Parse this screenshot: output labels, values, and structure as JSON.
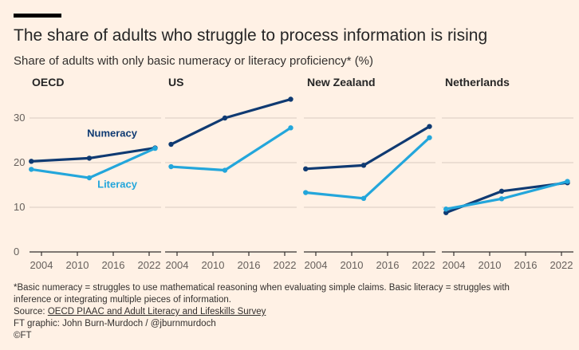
{
  "header": {
    "title": "The share of adults who struggle to process information is rising",
    "subtitle": "Share of adults with only basic numeracy or literacy proficiency* (%)"
  },
  "chart_data": [
    {
      "type": "line",
      "title": "OECD",
      "x": [
        2012,
        2023
      ],
      "xticks": [
        "2004",
        "2010",
        "2016",
        "2022"
      ],
      "xlim": [
        2002,
        2024
      ],
      "ylim": [
        0,
        35
      ],
      "yticks": [
        "0",
        "10",
        "20",
        "30"
      ],
      "series": [
        {
          "name": "Numeracy",
          "points": [
            [
              2002.3,
              20.3
            ],
            [
              2012,
              21
            ],
            [
              2023,
              23.3
            ]
          ]
        },
        {
          "name": "Literacy",
          "points": [
            [
              2002.3,
              18.5
            ],
            [
              2012,
              16.6
            ],
            [
              2023,
              23.2
            ]
          ]
        }
      ]
    },
    {
      "type": "line",
      "title": "US",
      "xticks": [
        "2004",
        "2010",
        "2016",
        "2022"
      ],
      "xlim": [
        2002,
        2024
      ],
      "ylim": [
        0,
        35
      ],
      "series": [
        {
          "name": "Numeracy",
          "points": [
            [
              2003,
              24.1
            ],
            [
              2012,
              30
            ],
            [
              2023,
              34.2
            ]
          ]
        },
        {
          "name": "Literacy",
          "points": [
            [
              2003,
              19.1
            ],
            [
              2012,
              18.3
            ],
            [
              2023,
              27.8
            ]
          ]
        }
      ]
    },
    {
      "type": "line",
      "title": "New Zealand",
      "xticks": [
        "2004",
        "2010",
        "2016",
        "2022"
      ],
      "xlim": [
        2002,
        2024
      ],
      "ylim": [
        0,
        35
      ],
      "series": [
        {
          "name": "Numeracy",
          "points": [
            [
              2002.3,
              18.6
            ],
            [
              2012,
              19.4
            ],
            [
              2023,
              28.1
            ]
          ]
        },
        {
          "name": "Literacy",
          "points": [
            [
              2002.3,
              13.3
            ],
            [
              2012,
              12
            ],
            [
              2023,
              25.6
            ]
          ]
        }
      ]
    },
    {
      "type": "line",
      "title": "Netherlands",
      "xticks": [
        "2004",
        "2010",
        "2016",
        "2022"
      ],
      "xlim": [
        2002,
        2024
      ],
      "ylim": [
        0,
        35
      ],
      "series": [
        {
          "name": "Numeracy",
          "points": [
            [
              2002.7,
              8.8
            ],
            [
              2012,
              13.6
            ],
            [
              2023,
              15.5
            ]
          ]
        },
        {
          "name": "Literacy",
          "points": [
            [
              2002.7,
              9.6
            ],
            [
              2012,
              11.9
            ],
            [
              2023,
              15.8
            ]
          ]
        }
      ]
    }
  ],
  "series_colors": {
    "Numeracy": "#0F3A72",
    "Literacy": "#23A6DB"
  },
  "legend_labels": {
    "Numeracy": "Numeracy",
    "Literacy": "Literacy"
  },
  "footer": {
    "note": "*Basic numeracy = struggles to use mathematical reasoning when evaluating simple claims. Basic literacy = struggles with",
    "note2": "inference or integrating multiple pieces of information.",
    "source_prefix": "Source: ",
    "source_link": "OECD PIAAC and Adult Literacy and Lifeskills Survey",
    "credit": "FT graphic: John Burn-Murdoch / @jburnmurdoch",
    "copyright": "©FT"
  }
}
